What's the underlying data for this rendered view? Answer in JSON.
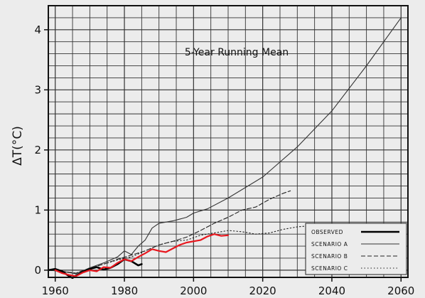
{
  "chart_data": {
    "type": "line",
    "title": "5-Year Running Mean",
    "ylabel": "ΔT(°C)",
    "xlabel": "",
    "xlim": [
      1958,
      2062
    ],
    "ylim": [
      -0.12,
      4.4
    ],
    "x_ticks": [
      1960,
      1980,
      2000,
      2020,
      2040,
      2060
    ],
    "y_ticks": [
      0,
      1,
      2,
      3,
      4
    ],
    "grid": true,
    "legend_position": "lower-right",
    "legend": [
      "OBSERVED",
      "SCENARIO A",
      "SCENARIO B",
      "SCENARIO C"
    ],
    "series": [
      {
        "name": "OBSERVED",
        "style": "solid-thick",
        "color": "#000000",
        "x": [
          1958,
          1960,
          1962,
          1964,
          1965,
          1966,
          1968,
          1970,
          1972,
          1974,
          1976,
          1978,
          1980,
          1982,
          1984,
          1985
        ],
        "y": [
          0.0,
          0.02,
          -0.02,
          -0.1,
          -0.13,
          -0.09,
          -0.03,
          0.02,
          0.05,
          0.01,
          0.04,
          0.1,
          0.18,
          0.15,
          0.08,
          0.1
        ]
      },
      {
        "name": "SCENARIO A",
        "style": "solid-thin",
        "color": "#333333",
        "x": [
          1958,
          1962,
          1966,
          1970,
          1974,
          1978,
          1980,
          1982,
          1984,
          1986,
          1988,
          1990,
          1994,
          1998,
          2000,
          2004,
          2010,
          2020,
          2030,
          2040,
          2050,
          2060
        ],
        "y": [
          0.0,
          -0.02,
          -0.06,
          0.04,
          0.12,
          0.22,
          0.32,
          0.26,
          0.4,
          0.5,
          0.7,
          0.78,
          0.82,
          0.88,
          0.95,
          1.02,
          1.2,
          1.55,
          2.05,
          2.65,
          3.4,
          4.2
        ]
      },
      {
        "name": "SCENARIO B",
        "style": "dashed",
        "color": "#222222",
        "x": [
          1958,
          1962,
          1966,
          1970,
          1974,
          1978,
          1982,
          1986,
          1990,
          1994,
          1998,
          2002,
          2006,
          2010,
          2014,
          2018,
          2022,
          2026,
          2028
        ],
        "y": [
          0.0,
          -0.02,
          -0.05,
          0.03,
          0.1,
          0.18,
          0.25,
          0.32,
          0.42,
          0.48,
          0.55,
          0.66,
          0.78,
          0.88,
          1.0,
          1.05,
          1.18,
          1.28,
          1.32
        ]
      },
      {
        "name": "SCENARIO C",
        "style": "dotted",
        "color": "#222222",
        "x": [
          1958,
          1962,
          1966,
          1970,
          1974,
          1978,
          1982,
          1986,
          1990,
          1994,
          1998,
          2002,
          2006,
          2010,
          2014,
          2018,
          2022,
          2026,
          2030,
          2034,
          2038
        ],
        "y": [
          0.0,
          -0.02,
          -0.05,
          0.03,
          0.1,
          0.17,
          0.22,
          0.32,
          0.42,
          0.48,
          0.5,
          0.58,
          0.62,
          0.66,
          0.64,
          0.6,
          0.62,
          0.68,
          0.72,
          0.74,
          0.72
        ]
      },
      {
        "name": "",
        "style": "solid-red",
        "color": "#e8171e",
        "x": [
          1960,
          1962,
          1964,
          1966,
          1968,
          1970,
          1972,
          1974,
          1976,
          1978,
          1980,
          1982,
          1984,
          1986,
          1988,
          1990,
          1992,
          1994,
          1996,
          1998,
          2000,
          2002,
          2004,
          2006,
          2008,
          2010
        ],
        "y": [
          0.0,
          -0.05,
          -0.08,
          -0.1,
          -0.04,
          0.0,
          -0.02,
          0.05,
          0.04,
          0.12,
          0.18,
          0.15,
          0.22,
          0.28,
          0.35,
          0.32,
          0.3,
          0.36,
          0.42,
          0.46,
          0.48,
          0.5,
          0.56,
          0.6,
          0.57,
          0.58
        ]
      }
    ]
  }
}
